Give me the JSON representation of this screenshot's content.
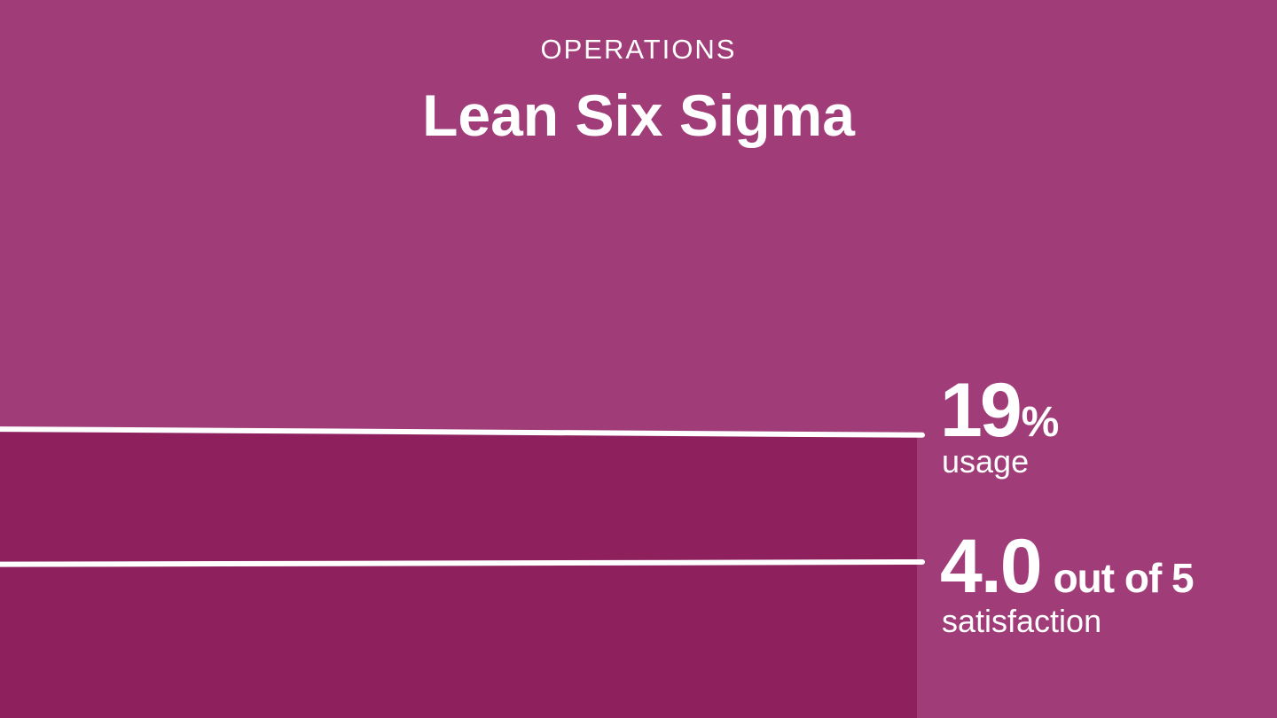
{
  "header": {
    "category": "OPERATIONS",
    "title": "Lean Six Sigma"
  },
  "stats": {
    "usage": {
      "value": "19",
      "unit": "%",
      "label": "usage"
    },
    "satisfaction": {
      "value": "4.0",
      "suffix": "out of 5",
      "label": "satisfaction"
    }
  },
  "colors": {
    "background": "#a03d78",
    "fill": "#8e215d",
    "line": "#ffffff",
    "text": "#ffffff"
  },
  "chart_data": {
    "type": "line",
    "series": [
      {
        "metric": "usage",
        "start": 19.4,
        "end": 19,
        "unit": "%"
      },
      {
        "metric": "satisfaction",
        "start": 3.98,
        "end": 4.0,
        "max": 5
      }
    ]
  }
}
